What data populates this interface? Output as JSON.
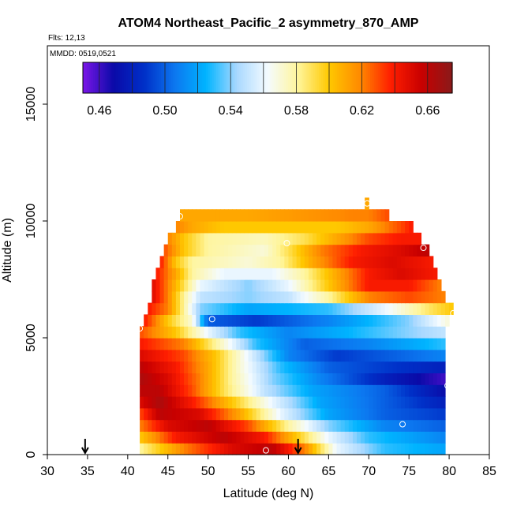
{
  "chart_data": {
    "type": "heatmap",
    "title": "ATOM4 Northeast_Pacific_2 asymmetry_870_AMP",
    "annotations": [
      "Flts: 12,13",
      "MMDD: 0519,0521"
    ],
    "xlabel": "Latitude (deg N)",
    "ylabel": "Altitude (m)",
    "xlim": [
      30,
      85
    ],
    "ylim": [
      0,
      17500
    ],
    "xticks": [
      30,
      35,
      40,
      45,
      50,
      55,
      60,
      65,
      70,
      75,
      80,
      85
    ],
    "yticks": [
      0,
      5000,
      10000,
      15000
    ],
    "grid": false,
    "colorbar": {
      "placement": "top, inside plot",
      "range": [
        0.45,
        0.675
      ],
      "ticks": [
        0.46,
        0.5,
        0.54,
        0.58,
        0.62,
        0.66
      ],
      "tick_labels": [
        "0.46",
        "0.50",
        "0.54",
        "0.58",
        "0.62",
        "0.66"
      ],
      "colors": [
        "#7b16e8",
        "#0a0aa8",
        "#0030c8",
        "#0c78f0",
        "#00b4ff",
        "#a8d8ff",
        "#f4fbff",
        "#fff59a",
        "#ffc800",
        "#ff8a00",
        "#ff1e00",
        "#c80000",
        "#8a1a1a"
      ]
    },
    "rows_meta": "cell rows ordered from 250 m upward in 500 m steps; each row lists [lat_start, lat_end, value] segments with linear interpolation inside",
    "rows": [
      {
        "alt": 250,
        "lat": [
          41.5,
          79.5
        ],
        "segs": [
          [
            41.5,
            0.58
          ],
          [
            47,
            0.62
          ],
          [
            53,
            0.65
          ],
          [
            58,
            0.66
          ],
          [
            62,
            0.62
          ],
          [
            66,
            0.56
          ],
          [
            72,
            0.53
          ],
          [
            79.5,
            0.52
          ]
        ]
      },
      {
        "alt": 750,
        "lat": [
          41.5,
          79.5
        ],
        "segs": [
          [
            41.5,
            0.6
          ],
          [
            46,
            0.64
          ],
          [
            52,
            0.66
          ],
          [
            57,
            0.64
          ],
          [
            61,
            0.6
          ],
          [
            65,
            0.56
          ],
          [
            70,
            0.53
          ],
          [
            79.5,
            0.51
          ]
        ]
      },
      {
        "alt": 1250,
        "lat": [
          41.5,
          79.5
        ],
        "segs": [
          [
            41.5,
            0.62
          ],
          [
            45,
            0.65
          ],
          [
            50,
            0.66
          ],
          [
            55,
            0.63
          ],
          [
            60,
            0.58
          ],
          [
            65,
            0.54
          ],
          [
            72,
            0.51
          ],
          [
            79.5,
            0.5
          ]
        ]
      },
      {
        "alt": 1750,
        "lat": [
          41.5,
          79.5
        ],
        "segs": [
          [
            41.5,
            0.63
          ],
          [
            44,
            0.66
          ],
          [
            49,
            0.65
          ],
          [
            54,
            0.61
          ],
          [
            59,
            0.56
          ],
          [
            65,
            0.52
          ],
          [
            72,
            0.5
          ],
          [
            79.5,
            0.49
          ]
        ]
      },
      {
        "alt": 2250,
        "lat": [
          41.5,
          79.5
        ],
        "segs": [
          [
            41.5,
            0.65
          ],
          [
            44,
            0.665
          ],
          [
            48,
            0.64
          ],
          [
            53,
            0.6
          ],
          [
            58,
            0.56
          ],
          [
            64,
            0.52
          ],
          [
            72,
            0.5
          ],
          [
            79.5,
            0.48
          ]
        ]
      },
      {
        "alt": 2750,
        "lat": [
          41.5,
          79.5
        ],
        "segs": [
          [
            41.5,
            0.66
          ],
          [
            44,
            0.66
          ],
          [
            48,
            0.63
          ],
          [
            52,
            0.59
          ],
          [
            57,
            0.55
          ],
          [
            63,
            0.52
          ],
          [
            72,
            0.5
          ],
          [
            79.5,
            0.47
          ]
        ]
      },
      {
        "alt": 3250,
        "lat": [
          41.5,
          79.5
        ],
        "segs": [
          [
            41.5,
            0.665
          ],
          [
            45,
            0.65
          ],
          [
            49,
            0.62
          ],
          [
            53,
            0.58
          ],
          [
            58,
            0.54
          ],
          [
            64,
            0.51
          ],
          [
            72,
            0.48
          ],
          [
            79.5,
            0.46
          ]
        ]
      },
      {
        "alt": 3750,
        "lat": [
          41.5,
          79.5
        ],
        "segs": [
          [
            41.5,
            0.66
          ],
          [
            46,
            0.64
          ],
          [
            50,
            0.61
          ],
          [
            54,
            0.57
          ],
          [
            59,
            0.53
          ],
          [
            65,
            0.5
          ],
          [
            72,
            0.49
          ],
          [
            79.5,
            0.48
          ]
        ]
      },
      {
        "alt": 4250,
        "lat": [
          41.5,
          79.5
        ],
        "segs": [
          [
            41.5,
            0.65
          ],
          [
            47,
            0.63
          ],
          [
            51,
            0.6
          ],
          [
            55,
            0.56
          ],
          [
            60,
            0.51
          ],
          [
            66,
            0.49
          ],
          [
            73,
            0.5
          ],
          [
            79.5,
            0.51
          ]
        ]
      },
      {
        "alt": 4750,
        "lat": [
          41.5,
          79.5
        ],
        "segs": [
          [
            41.5,
            0.64
          ],
          [
            47,
            0.62
          ],
          [
            50,
            0.59
          ],
          [
            53,
            0.56
          ],
          [
            56,
            0.53
          ],
          [
            62,
            0.5
          ],
          [
            70,
            0.51
          ],
          [
            79.5,
            0.53
          ]
        ]
      },
      {
        "alt": 5250,
        "lat": [
          41.5,
          79.5
        ],
        "segs": [
          [
            41.5,
            0.63
          ],
          [
            46,
            0.6
          ],
          [
            50,
            0.56
          ],
          [
            54,
            0.53
          ],
          [
            60,
            0.51
          ],
          [
            70,
            0.53
          ],
          [
            79.5,
            0.55
          ]
        ]
      },
      {
        "alt": 5750,
        "lat": [
          42,
          80
        ],
        "segs": [
          [
            42,
            0.64
          ],
          [
            45,
            0.6
          ],
          [
            48,
            0.57
          ],
          [
            50,
            0.5
          ],
          [
            56,
            0.49
          ],
          [
            65,
            0.51
          ],
          [
            75,
            0.54
          ],
          [
            80,
            0.57
          ]
        ]
      },
      {
        "alt": 6250,
        "lat": [
          42.5,
          80.5
        ],
        "segs": [
          [
            42.5,
            0.64
          ],
          [
            45,
            0.62
          ],
          [
            47,
            0.58
          ],
          [
            49,
            0.54
          ],
          [
            55,
            0.52
          ],
          [
            65,
            0.53
          ],
          [
            72,
            0.56
          ],
          [
            78,
            0.59
          ],
          [
            80.5,
            0.6
          ]
        ]
      },
      {
        "alt": 6750,
        "lat": [
          43,
          79.5
        ],
        "segs": [
          [
            43,
            0.65
          ],
          [
            45,
            0.62
          ],
          [
            47,
            0.58
          ],
          [
            49,
            0.55
          ],
          [
            55,
            0.54
          ],
          [
            60,
            0.55
          ],
          [
            65,
            0.58
          ],
          [
            70,
            0.62
          ],
          [
            75,
            0.63
          ],
          [
            79.5,
            0.62
          ]
        ]
      },
      {
        "alt": 7250,
        "lat": [
          43,
          79
        ],
        "segs": [
          [
            43,
            0.65
          ],
          [
            45,
            0.62
          ],
          [
            47,
            0.59
          ],
          [
            49,
            0.56
          ],
          [
            55,
            0.54
          ],
          [
            60,
            0.56
          ],
          [
            65,
            0.6
          ],
          [
            70,
            0.64
          ],
          [
            75,
            0.64
          ],
          [
            79,
            0.62
          ]
        ]
      },
      {
        "alt": 7750,
        "lat": [
          43.5,
          78.5
        ],
        "segs": [
          [
            43.5,
            0.64
          ],
          [
            46,
            0.61
          ],
          [
            48,
            0.58
          ],
          [
            52,
            0.56
          ],
          [
            58,
            0.56
          ],
          [
            62,
            0.58
          ],
          [
            66,
            0.61
          ],
          [
            70,
            0.64
          ],
          [
            74,
            0.65
          ],
          [
            78.5,
            0.64
          ]
        ]
      },
      {
        "alt": 8250,
        "lat": [
          44,
          78
        ],
        "segs": [
          [
            44,
            0.64
          ],
          [
            46,
            0.6
          ],
          [
            48,
            0.58
          ],
          [
            55,
            0.57
          ],
          [
            59,
            0.58
          ],
          [
            63,
            0.61
          ],
          [
            68,
            0.64
          ],
          [
            73,
            0.65
          ],
          [
            78,
            0.64
          ]
        ]
      },
      {
        "alt": 8750,
        "lat": [
          44.5,
          77.5
        ],
        "segs": [
          [
            44.5,
            0.63
          ],
          [
            47,
            0.6
          ],
          [
            50,
            0.58
          ],
          [
            57,
            0.57
          ],
          [
            60,
            0.59
          ],
          [
            64,
            0.62
          ],
          [
            69,
            0.64
          ],
          [
            74,
            0.65
          ],
          [
            77.5,
            0.66
          ]
        ]
      },
      {
        "alt": 9250,
        "lat": [
          45,
          76.5
        ],
        "segs": [
          [
            45,
            0.62
          ],
          [
            47,
            0.6
          ],
          [
            50,
            0.58
          ],
          [
            57,
            0.575
          ],
          [
            62,
            0.59
          ],
          [
            66,
            0.61
          ],
          [
            70,
            0.63
          ],
          [
            74,
            0.64
          ],
          [
            76.5,
            0.64
          ]
        ]
      },
      {
        "alt": 9750,
        "lat": [
          46,
          75.5
        ],
        "segs": [
          [
            46,
            0.62
          ],
          [
            48,
            0.61
          ],
          [
            52,
            0.6
          ],
          [
            60,
            0.6
          ],
          [
            66,
            0.6
          ],
          [
            70,
            0.61
          ],
          [
            74,
            0.63
          ],
          [
            75.5,
            0.64
          ]
        ]
      },
      {
        "alt": 10250,
        "lat": [
          46.5,
          72.5
        ],
        "segs": [
          [
            46.5,
            0.61
          ],
          [
            55,
            0.61
          ],
          [
            62,
            0.615
          ],
          [
            68,
            0.62
          ],
          [
            70,
            0.62
          ],
          [
            72.5,
            0.63
          ]
        ]
      },
      {
        "alt": 10750,
        "lat": [
          69.5,
          70
        ],
        "segs": [
          [
            69.5,
            0.61
          ],
          [
            70,
            0.61
          ]
        ]
      }
    ],
    "markers": [
      {
        "lat": 46.5,
        "alt": 10200
      },
      {
        "lat": 69.8,
        "alt": 10750
      },
      {
        "lat": 59.8,
        "alt": 9050
      },
      {
        "lat": 76.8,
        "alt": 8850
      },
      {
        "lat": 80.5,
        "alt": 6050
      },
      {
        "lat": 50.5,
        "alt": 5800
      },
      {
        "lat": 41.5,
        "alt": 5400
      },
      {
        "lat": 79.8,
        "alt": 2950
      },
      {
        "lat": 74.2,
        "alt": 1300
      },
      {
        "lat": 57.2,
        "alt": 180
      }
    ],
    "arrows_at_lat": [
      34.7,
      61.2
    ]
  }
}
